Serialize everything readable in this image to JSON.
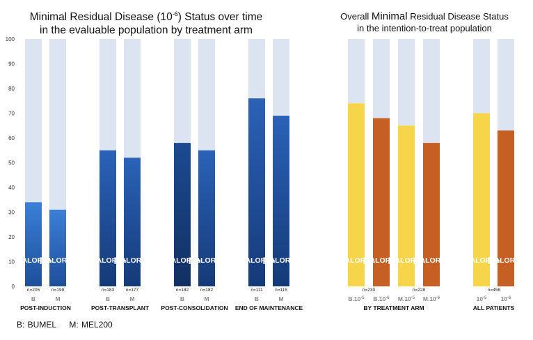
{
  "titles": {
    "left_line1_a": "Minimal Residual Disease (10",
    "left_line1_sup": "-6",
    "left_line1_b": ") Status over time",
    "left_line2": "in the evaluable population by treatment arm",
    "right_line1_a": "Overall ",
    "right_line1_big": "Minimal",
    "right_line1_b": " Residual Disease Status",
    "right_line2": "in the intention-to-treat population"
  },
  "footnote": {
    "b": "B: BUMEL",
    "m": "M: MEL200"
  },
  "colors": {
    "background_bar": "#dce4f2",
    "blue_light": "#3a7bd5",
    "blue_dark": "#1a3f7a",
    "yellow": "#f7d54a",
    "orange": "#c65f24"
  },
  "chart_data": [
    {
      "type": "bar",
      "title": "Minimal Residual Disease (10-6) Status over time in the evaluable population by treatment arm",
      "ylim": [
        0,
        100
      ],
      "yticks": [
        0,
        10,
        20,
        30,
        40,
        50,
        60,
        70,
        80,
        90,
        100
      ],
      "bar_label": "[VALOR]%",
      "groups": [
        {
          "label": "POST-INDUCTION",
          "bars": [
            {
              "category": "B",
              "value": 34,
              "n": "n=205",
              "color": "blue_light"
            },
            {
              "category": "M",
              "value": 31,
              "n": "n=199",
              "color": "blue_light"
            }
          ]
        },
        {
          "label": "POST-TRANSPLANT",
          "bars": [
            {
              "category": "B",
              "value": 55,
              "n": "n=183",
              "color": "blue_mid"
            },
            {
              "category": "M",
              "value": 52,
              "n": "n=177",
              "color": "blue_mid"
            }
          ]
        },
        {
          "label": "POST-CONSOLIDATION",
          "bars": [
            {
              "category": "B",
              "value": 58,
              "n": "n=182",
              "color": "blue_dark"
            },
            {
              "category": "M",
              "value": 55,
              "n": "n=182",
              "color": "blue_mid"
            }
          ]
        },
        {
          "label": "END OF  MAINTENANCE",
          "bars": [
            {
              "category": "B",
              "value": 76,
              "n": "n=111",
              "color": "blue_mid"
            },
            {
              "category": "M",
              "value": 69,
              "n": "n=115",
              "color": "blue_mid"
            }
          ]
        }
      ]
    },
    {
      "type": "bar",
      "title": "Overall Minimal Residual Disease Status in the intention-to-treat population",
      "ylim": [
        0,
        100
      ],
      "bar_label": "[VALOR]%",
      "groups": [
        {
          "label": "BY TREATMENT ARM",
          "n_labels": [
            "n=230",
            "n=228"
          ],
          "bars": [
            {
              "category": "B.10",
              "sup": "-5",
              "value": 74,
              "color": "yellow"
            },
            {
              "category": "B.10",
              "sup": "-6",
              "value": 68,
              "color": "orange"
            },
            {
              "category": "M.10",
              "sup": "-5",
              "value": 65,
              "color": "yellow"
            },
            {
              "category": "M.10",
              "sup": "-6",
              "value": 58,
              "color": "orange"
            }
          ]
        },
        {
          "label": "ALL PATIENTS",
          "n_labels": [
            "n=458"
          ],
          "bars": [
            {
              "category": "10",
              "sup": "-5",
              "value": 70,
              "color": "yellow"
            },
            {
              "category": "10",
              "sup": "-6",
              "value": 63,
              "color": "orange"
            }
          ]
        }
      ]
    }
  ]
}
